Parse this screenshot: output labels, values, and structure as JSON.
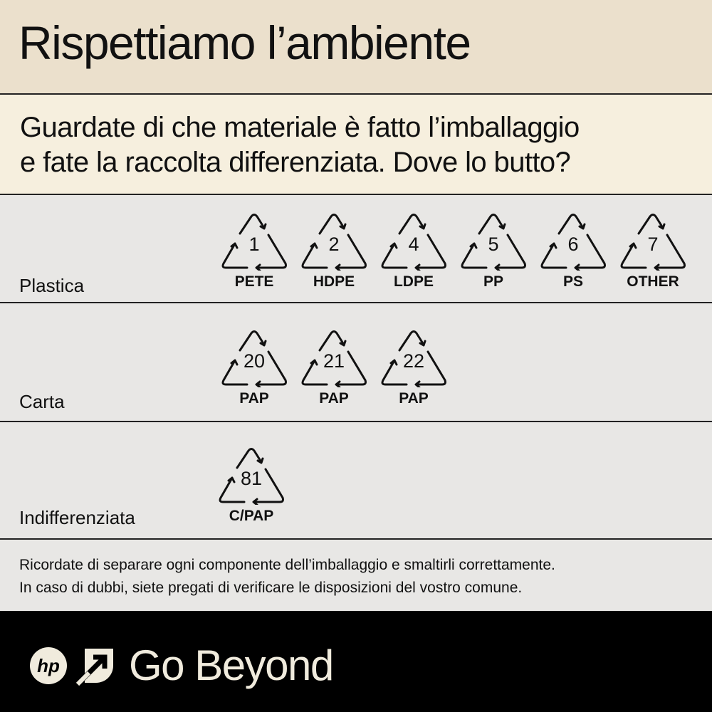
{
  "header": {
    "title": "Rispettiamo l’ambiente"
  },
  "subtitle": {
    "line1": "Guardate di che materiale è fatto l’imballaggio",
    "line2": "e fate la raccolta differenziata.  Dove lo butto?"
  },
  "categories": [
    {
      "label": "Plastica",
      "symbols": [
        {
          "number": "1",
          "code": "PETE"
        },
        {
          "number": "2",
          "code": "HDPE"
        },
        {
          "number": "4",
          "code": "LDPE"
        },
        {
          "number": "5",
          "code": "PP"
        },
        {
          "number": "6",
          "code": "PS"
        },
        {
          "number": "7",
          "code": "OTHER"
        }
      ]
    },
    {
      "label": "Carta",
      "symbols": [
        {
          "number": "20",
          "code": "PAP"
        },
        {
          "number": "21",
          "code": "PAP"
        },
        {
          "number": "22",
          "code": "PAP"
        }
      ]
    },
    {
      "label": "Indifferenziata",
      "symbols": [
        {
          "number": "81",
          "code": "C/PAP"
        }
      ]
    }
  ],
  "note": {
    "line1": "Ricordate di separare ogni componente dell’imballaggio e smaltirli correttamente.",
    "line2": "In caso di dubbi, siete pregati di verificare le disposizioni del vostro comune."
  },
  "footer": {
    "logo": "hp",
    "brand": "Go Beyond"
  },
  "colors": {
    "title_bg": "#ebe0cc",
    "subtitle_bg": "#f6efde",
    "row_bg": "#e8e7e5",
    "footer_bg": "#000000",
    "footer_text": "#f0ebdd"
  }
}
